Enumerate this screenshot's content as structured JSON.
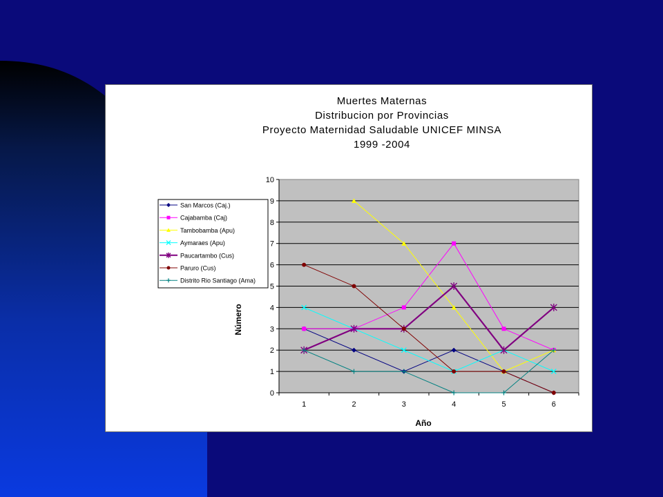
{
  "colors": {
    "slide_background": "#0a0a7a",
    "plot_area": "#c0c0c0",
    "gridline": "#000000"
  },
  "chart_data": {
    "type": "line",
    "title": [
      "Muertes Maternas",
      "Distribucion por Provincias",
      "Proyecto Maternidad Saludable UNICEF MINSA",
      "1999 -2004"
    ],
    "xlabel": "Año",
    "ylabel": "Número",
    "x": [
      1,
      2,
      3,
      4,
      5,
      6
    ],
    "ylim": [
      0,
      10
    ],
    "yticks": [
      0,
      1,
      2,
      3,
      4,
      5,
      6,
      7,
      8,
      9,
      10
    ],
    "grid": true,
    "legend_position": "left",
    "series": [
      {
        "name": "San Marcos (Caj.)",
        "color": "#000080",
        "marker": "diamond",
        "values": [
          3,
          2,
          1,
          2,
          1,
          0
        ]
      },
      {
        "name": "Cajabamba (Caj)",
        "color": "#ff00ff",
        "marker": "square",
        "values": [
          3,
          3,
          4,
          7,
          3,
          2
        ]
      },
      {
        "name": "Tambobamba (Apu)",
        "color": "#ffff00",
        "marker": "triangle",
        "values": [
          null,
          9,
          7,
          4,
          1,
          2
        ]
      },
      {
        "name": "Aymaraes (Apu)",
        "color": "#00ffff",
        "marker": "x",
        "values": [
          4,
          3,
          2,
          1,
          2,
          1
        ]
      },
      {
        "name": "Paucartambo (Cus)",
        "color": "#800080",
        "marker": "star",
        "values": [
          2,
          3,
          3,
          5,
          2,
          4
        ]
      },
      {
        "name": "Paruro (Cus)",
        "color": "#800000",
        "marker": "circle",
        "values": [
          6,
          5,
          3,
          1,
          1,
          0
        ]
      },
      {
        "name": "Distrito Rio Santiago (Ama)",
        "color": "#008080",
        "marker": "plus",
        "values": [
          2,
          1,
          1,
          0,
          0,
          2
        ]
      }
    ]
  }
}
